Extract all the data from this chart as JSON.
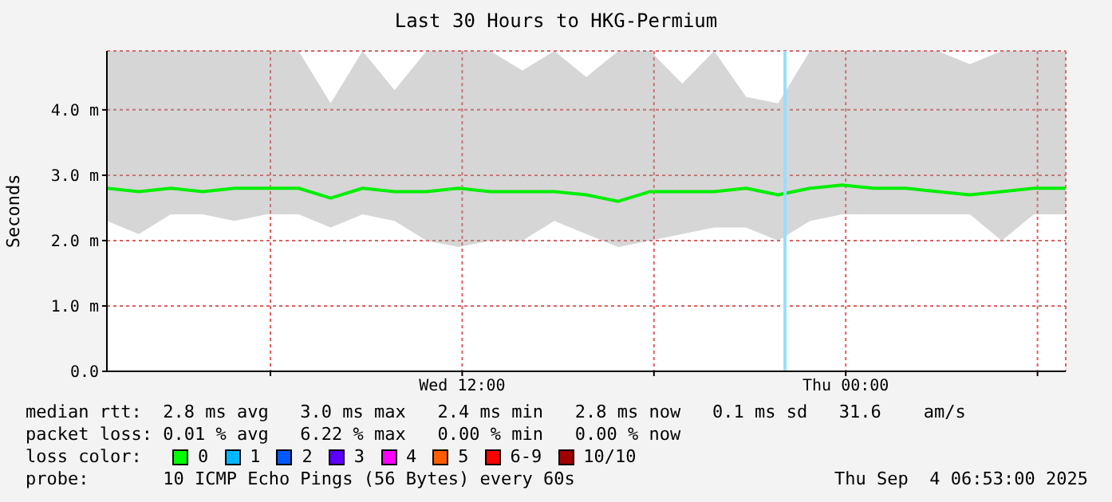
{
  "chart_data": {
    "type": "line",
    "title": "Last 30 Hours to HKG-Permium",
    "ylabel": "Seconds",
    "x": [
      "2025-09-03T00:53",
      "2025-09-03T01:53",
      "2025-09-03T02:53",
      "2025-09-03T03:53",
      "2025-09-03T04:53",
      "2025-09-03T05:53",
      "2025-09-03T06:53",
      "2025-09-03T07:53",
      "2025-09-03T08:53",
      "2025-09-03T09:53",
      "2025-09-03T10:53",
      "2025-09-03T11:53",
      "2025-09-03T12:53",
      "2025-09-03T13:53",
      "2025-09-03T14:53",
      "2025-09-03T15:53",
      "2025-09-03T16:53",
      "2025-09-03T17:53",
      "2025-09-03T18:53",
      "2025-09-03T19:53",
      "2025-09-03T20:53",
      "2025-09-03T21:53",
      "2025-09-03T22:53",
      "2025-09-03T23:53",
      "2025-09-04T00:53",
      "2025-09-04T01:53",
      "2025-09-04T02:53",
      "2025-09-04T03:53",
      "2025-09-04T04:53",
      "2025-09-04T05:53",
      "2025-09-04T06:53"
    ],
    "series": [
      {
        "color": "#00ee00",
        "values": [
          2.8,
          2.75,
          2.8,
          2.75,
          2.8,
          2.8,
          2.8,
          2.65,
          2.8,
          2.75,
          2.75,
          2.8,
          2.75,
          2.75,
          2.75,
          2.7,
          2.6,
          2.75,
          2.75,
          2.75,
          2.8,
          2.7,
          2.8,
          2.85,
          2.8,
          2.8,
          2.75,
          2.7,
          2.75,
          2.8,
          2.8
        ],
        "lower": [
          2.3,
          2.1,
          2.4,
          2.4,
          2.3,
          2.4,
          2.4,
          2.2,
          2.4,
          2.3,
          2.0,
          1.9,
          2.0,
          2.0,
          2.3,
          2.1,
          1.9,
          2.0,
          2.1,
          2.2,
          2.2,
          2.0,
          2.3,
          2.4,
          2.4,
          2.4,
          2.4,
          2.4,
          2.0,
          2.4,
          2.4
        ],
        "upper": [
          4.9,
          4.9,
          4.9,
          4.9,
          4.9,
          4.9,
          4.9,
          4.1,
          4.9,
          4.3,
          4.9,
          4.9,
          4.9,
          4.6,
          4.9,
          4.5,
          4.9,
          4.9,
          4.4,
          4.9,
          4.2,
          4.1,
          4.9,
          4.9,
          4.9,
          4.9,
          4.9,
          4.7,
          4.9,
          4.9,
          4.9
        ]
      }
    ],
    "xlim": [
      "2025-09-03T00:53",
      "2025-09-04T06:53"
    ],
    "xticks": [
      {
        "value": "2025-09-03T06:00",
        "label": null
      },
      {
        "value": "2025-09-03T12:00",
        "label": "Wed 12:00"
      },
      {
        "value": "2025-09-03T18:00",
        "label": null
      },
      {
        "value": "2025-09-04T00:00",
        "label": "Thu 00:00"
      },
      {
        "value": "2025-09-04T06:00",
        "label": null
      }
    ],
    "ylim": [
      0,
      4.9
    ],
    "yticks": [
      {
        "value": 0,
        "label": "0.0"
      },
      {
        "value": 1,
        "label": "1.0 m"
      },
      {
        "value": 2,
        "label": "2.0 m"
      },
      {
        "value": 3,
        "label": "3.0 m"
      },
      {
        "value": 4,
        "label": "4.0 m"
      }
    ],
    "grid": true,
    "legend": false,
    "marker": "none",
    "line_style": "solid",
    "ref_lines": [
      {
        "axis": "x",
        "value": "2025-09-03T22:06",
        "color": "#99ddff"
      }
    ],
    "annotations": [
      "median rtt:  2.8 ms avg   3.0 ms max   2.4 ms min   2.8 ms now   0.1 ms sd   31.6    am/s",
      "packet loss: 0.01 % avg   6.22 % max   0.00 % min   0.00 % now",
      "loss color:",
      "0",
      "1",
      "2",
      "3",
      "4",
      "5",
      "6-9",
      "10/10",
      "probe:       10 ICMP Echo Pings (56 Bytes) every 60s",
      "Thu Sep  4 06:53:00 2025"
    ]
  }
}
